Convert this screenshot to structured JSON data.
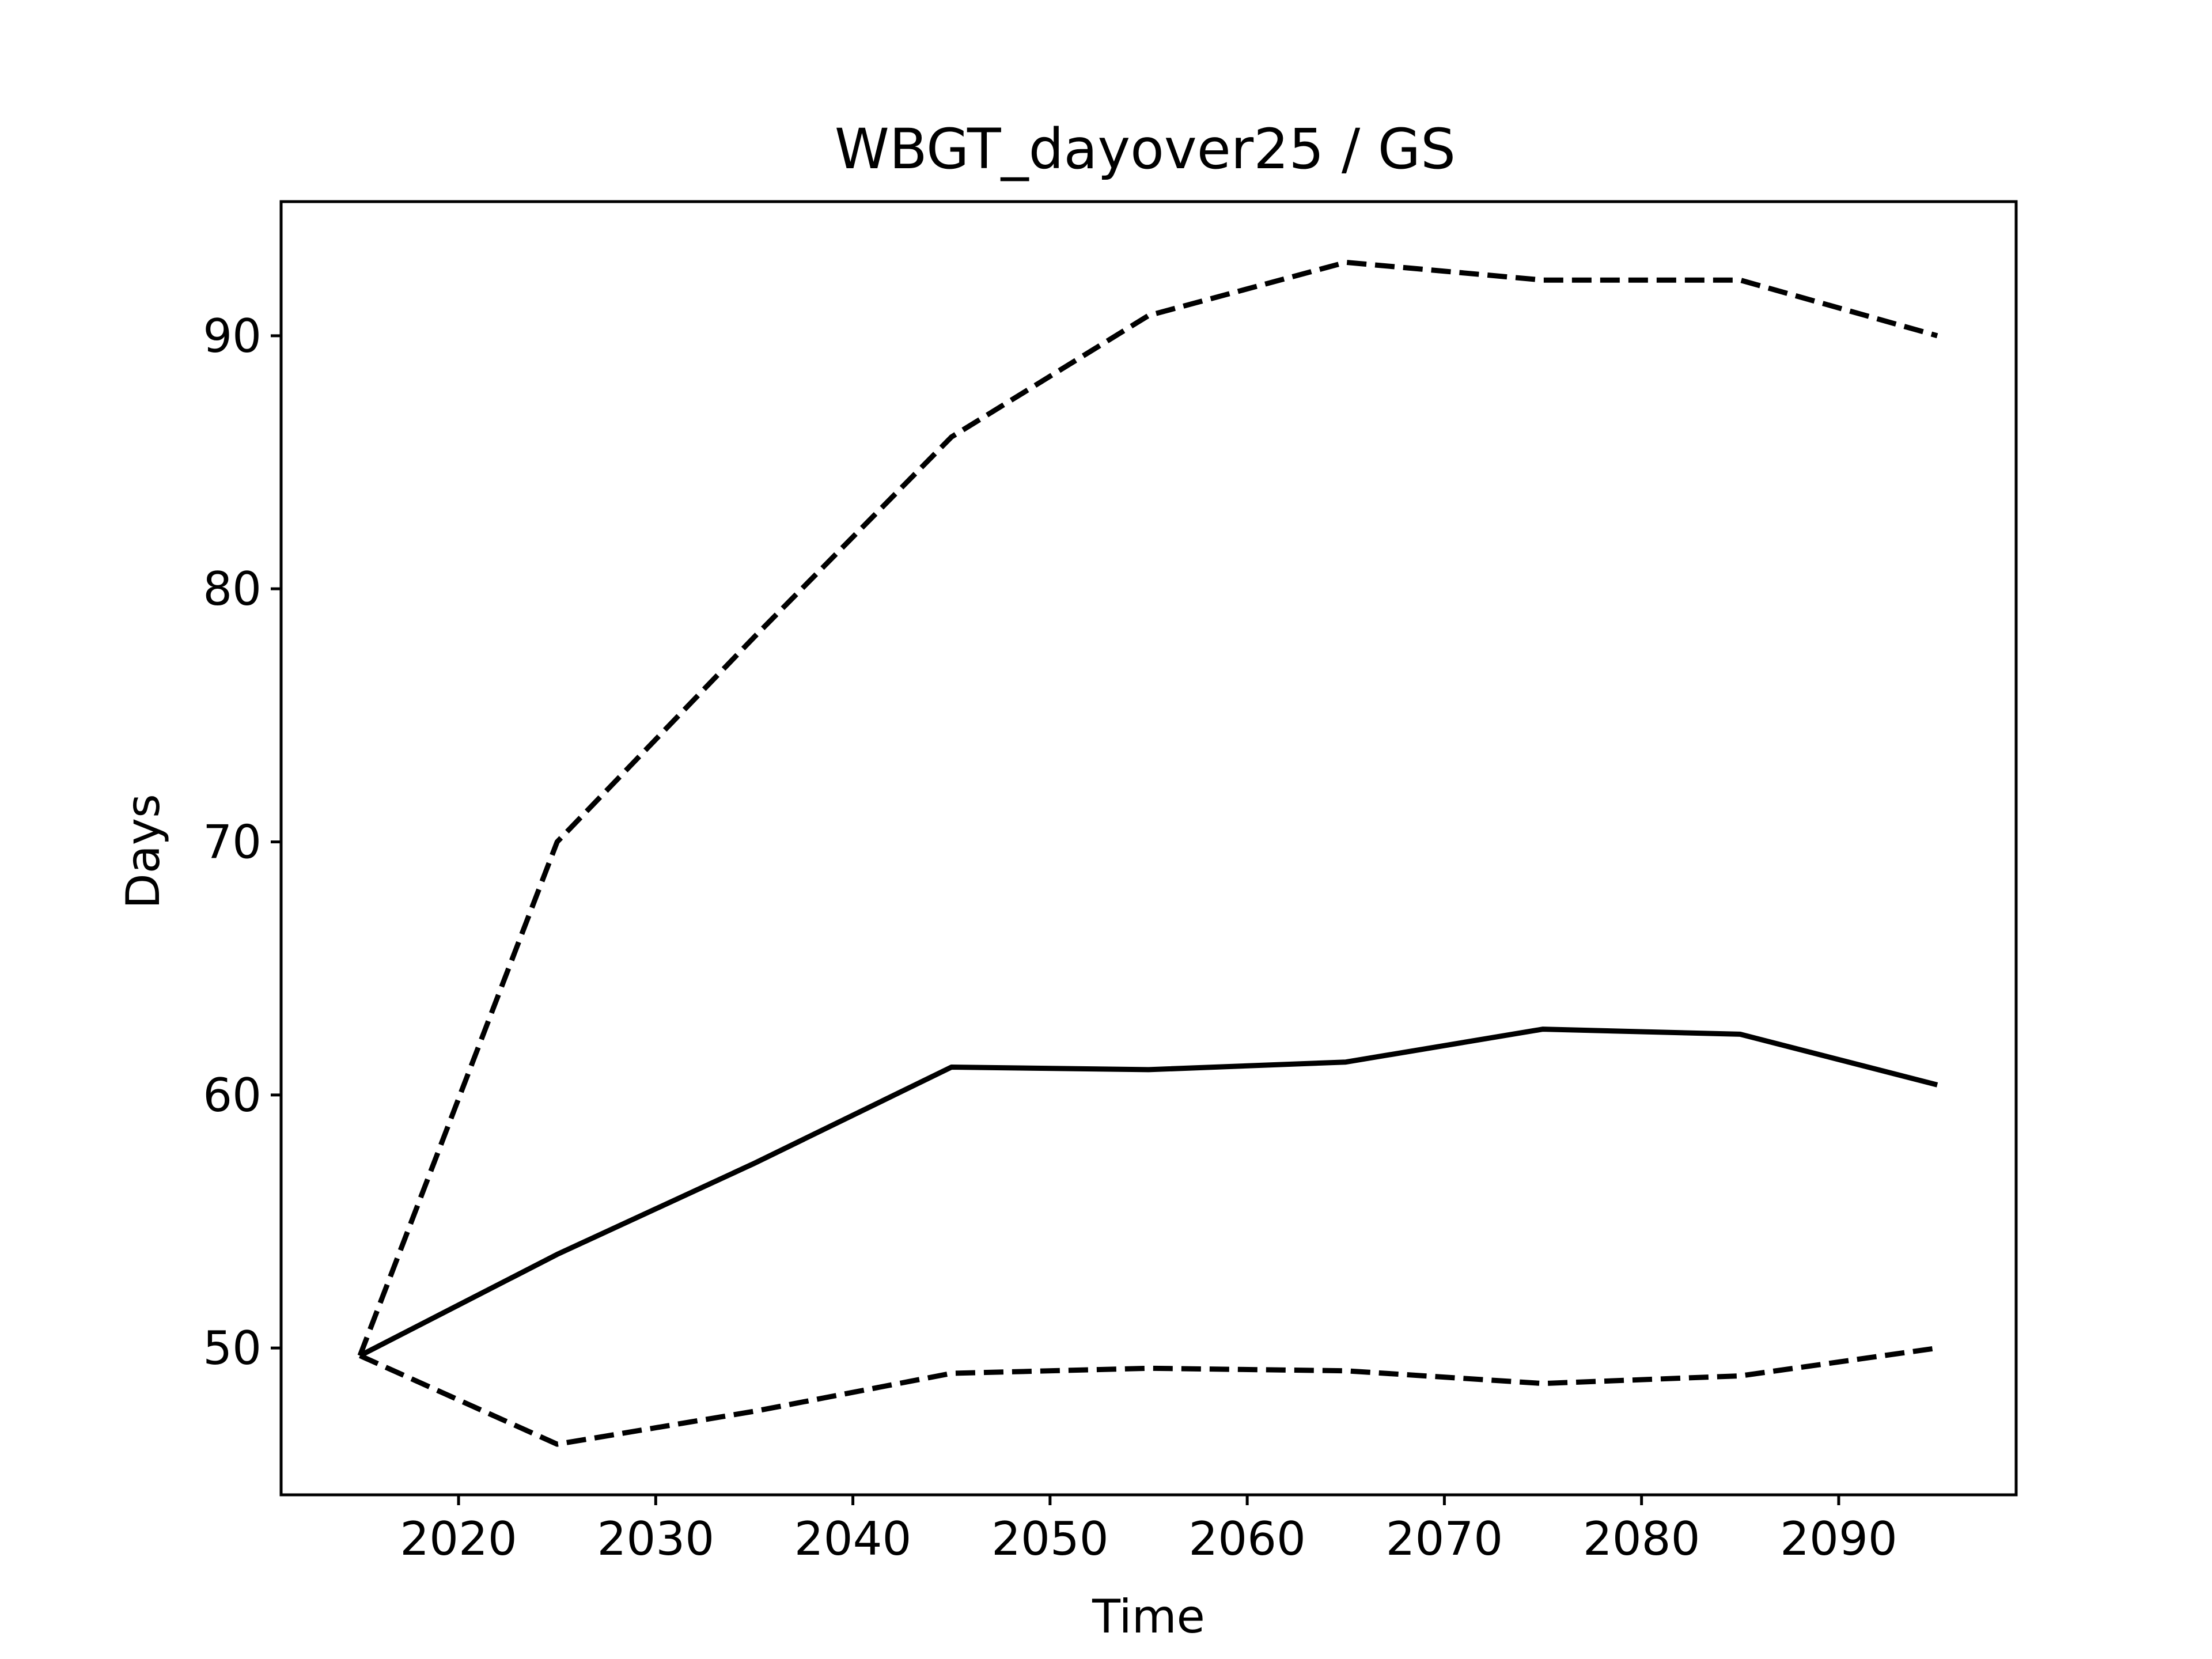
{
  "chart_data": {
    "type": "line",
    "title": "WBGT_dayover25 / GS",
    "xlabel": "Time",
    "ylabel": "Days",
    "xlim": [
      2011,
      2099
    ],
    "ylim": [
      44.2,
      95.3
    ],
    "grid": false,
    "legend": "none",
    "x_ticks": [
      2020,
      2030,
      2040,
      2050,
      2060,
      2070,
      2080,
      2090
    ],
    "y_ticks": [
      50,
      60,
      70,
      80,
      90
    ],
    "x": [
      2015,
      2025,
      2035,
      2045,
      2055,
      2065,
      2075,
      2085,
      2095
    ],
    "series": [
      {
        "style": "solid",
        "color": "#000000",
        "values": [
          49.7,
          53.7,
          57.3,
          61.1,
          61.0,
          61.3,
          62.6,
          62.4,
          60.4
        ]
      },
      {
        "style": "dashed",
        "color": "#000000",
        "values": [
          49.7,
          70.0,
          78.1,
          86.0,
          90.8,
          92.9,
          92.2,
          92.2,
          90.0
        ]
      },
      {
        "style": "dashed",
        "color": "#000000",
        "values": [
          49.7,
          46.2,
          47.5,
          49.0,
          49.2,
          49.1,
          48.6,
          48.9,
          50.0
        ]
      }
    ]
  }
}
